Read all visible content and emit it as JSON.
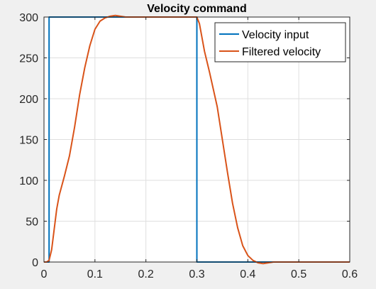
{
  "chart_data": {
    "type": "line",
    "title": "Velocity command",
    "xlabel": "",
    "ylabel": "",
    "xlim": [
      0,
      0.6
    ],
    "ylim": [
      0,
      300
    ],
    "xticks": [
      0,
      0.1,
      0.2,
      0.3,
      0.4,
      0.5,
      0.6
    ],
    "xtick_labels": [
      "0",
      "0.1",
      "0.2",
      "0.3",
      "0.4",
      "0.5",
      "0.6"
    ],
    "yticks": [
      0,
      50,
      100,
      150,
      200,
      250,
      300
    ],
    "ytick_labels": [
      "0",
      "50",
      "100",
      "150",
      "200",
      "250",
      "300"
    ],
    "grid": true,
    "legend_position": "top-right",
    "series": [
      {
        "name": "Velocity input",
        "color": "#0072BD",
        "x": [
          0,
          0.01,
          0.01,
          0.3,
          0.3,
          0.6
        ],
        "y": [
          0,
          0,
          300,
          300,
          0,
          0
        ]
      },
      {
        "name": "Filtered velocity",
        "color": "#D95319",
        "x": [
          0,
          0.005,
          0.01,
          0.015,
          0.02,
          0.025,
          0.03,
          0.04,
          0.05,
          0.06,
          0.07,
          0.08,
          0.09,
          0.1,
          0.11,
          0.12,
          0.13,
          0.14,
          0.15,
          0.16,
          0.18,
          0.2,
          0.25,
          0.3,
          0.305,
          0.31,
          0.315,
          0.32,
          0.325,
          0.33,
          0.34,
          0.35,
          0.36,
          0.37,
          0.38,
          0.39,
          0.4,
          0.41,
          0.42,
          0.43,
          0.44,
          0.45,
          0.5,
          0.55,
          0.6
        ],
        "y": [
          0,
          0,
          2,
          15,
          40,
          65,
          82,
          105,
          130,
          165,
          205,
          238,
          265,
          285,
          295,
          299,
          301,
          302,
          301,
          300,
          300,
          300,
          300,
          300,
          292,
          275,
          258,
          245,
          232,
          218,
          190,
          150,
          110,
          72,
          42,
          20,
          8,
          2,
          -1,
          -2,
          -1,
          0,
          0,
          0,
          0
        ]
      }
    ]
  }
}
